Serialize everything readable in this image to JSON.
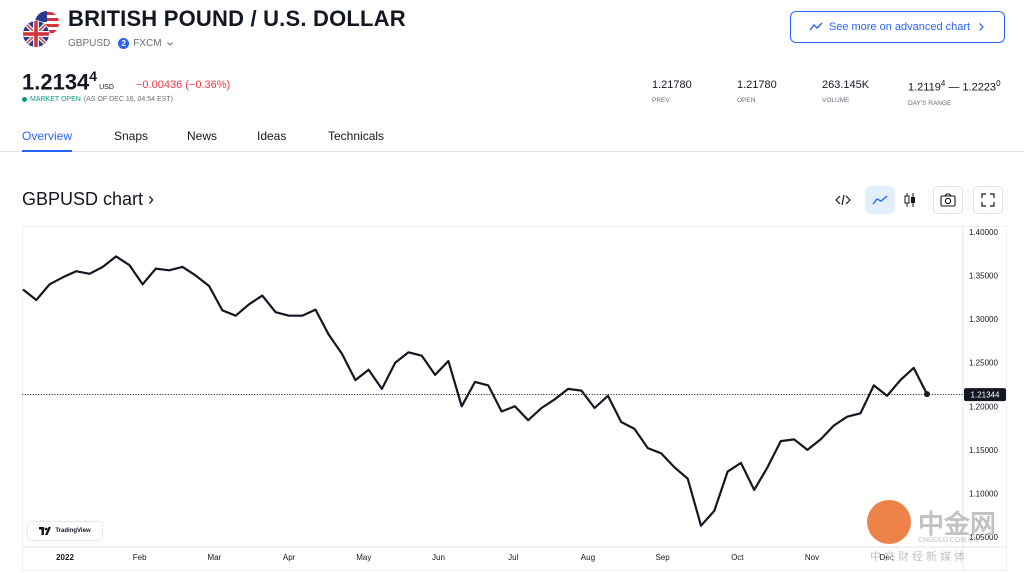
{
  "header": {
    "title": "BRITISH POUND / U.S. DOLLAR",
    "symbol": "GBPUSD",
    "source_badge": "2",
    "source": "FXCM",
    "advanced_chart_label": "See more on advanced chart"
  },
  "quote": {
    "price_main": "1.2134",
    "price_sup": "4",
    "price_unit": "USD",
    "change": "−0.00436 (−0.36%)",
    "market_status": "MARKET OPEN",
    "as_of": "(AS OF DEC 16, 04:54 EST)"
  },
  "stats": {
    "prev": {
      "value": "1.21780",
      "label": "PREV"
    },
    "open": {
      "value": "1.21780",
      "label": "OPEN"
    },
    "volume": {
      "value": "263.145K",
      "label": "VOLUME"
    },
    "range": {
      "low": "1.2119",
      "low_sup": "4",
      "sep": " — ",
      "high": "1.2223",
      "high_sup": "0",
      "label": "DAY'S RANGE"
    }
  },
  "tabs": [
    "Overview",
    "Snaps",
    "News",
    "Ideas",
    "Technicals"
  ],
  "chart_header": {
    "title": "GBPUSD chart ›"
  },
  "icons": {
    "embed": "code-icon",
    "line": "line-chart-icon",
    "candle": "candlestick-icon",
    "snapshot": "camera-icon",
    "fullscreen": "fullscreen-icon"
  },
  "colors": {
    "accent": "#2962ff",
    "negative": "#f23645",
    "positive": "#089981",
    "line": "#131722"
  },
  "branding": {
    "tradingview": "TradingView",
    "watermark": "中金网",
    "watermark_url": "CNGOLD.COM.CN",
    "watermark_cn": "中文财经新媒体"
  },
  "chart_data": {
    "type": "line",
    "title": "",
    "xlabel": "",
    "ylabel": "",
    "ylim": [
      1.05,
      1.4
    ],
    "y_ticks": [
      "1.40000",
      "1.35000",
      "1.30000",
      "1.25000",
      "1.20000",
      "1.15000",
      "1.10000",
      "1.05000"
    ],
    "x_ticks": [
      "2022",
      "Feb",
      "Mar",
      "Apr",
      "May",
      "Jun",
      "Jul",
      "Aug",
      "Sep",
      "Oct",
      "Nov",
      "Dec"
    ],
    "last_value_label": "1.21344",
    "last_value": 1.21344,
    "series": [
      {
        "values": [
          1.334,
          1.322,
          1.34,
          1.348,
          1.355,
          1.352,
          1.36,
          1.372,
          1.362,
          1.34,
          1.358,
          1.356,
          1.36,
          1.35,
          1.338,
          1.31,
          1.304,
          1.317,
          1.327,
          1.308,
          1.304,
          1.304,
          1.311,
          1.282,
          1.26,
          1.23,
          1.242,
          1.22,
          1.25,
          1.262,
          1.258,
          1.236,
          1.252,
          1.2,
          1.228,
          1.224,
          1.194,
          1.2,
          1.184,
          1.198,
          1.208,
          1.22,
          1.218,
          1.198,
          1.212,
          1.182,
          1.174,
          1.152,
          1.146,
          1.13,
          1.117,
          1.063,
          1.08,
          1.125,
          1.135,
          1.104,
          1.13,
          1.16,
          1.162,
          1.15,
          1.162,
          1.178,
          1.188,
          1.192,
          1.224,
          1.212,
          1.23,
          1.244,
          1.214
        ]
      }
    ]
  }
}
